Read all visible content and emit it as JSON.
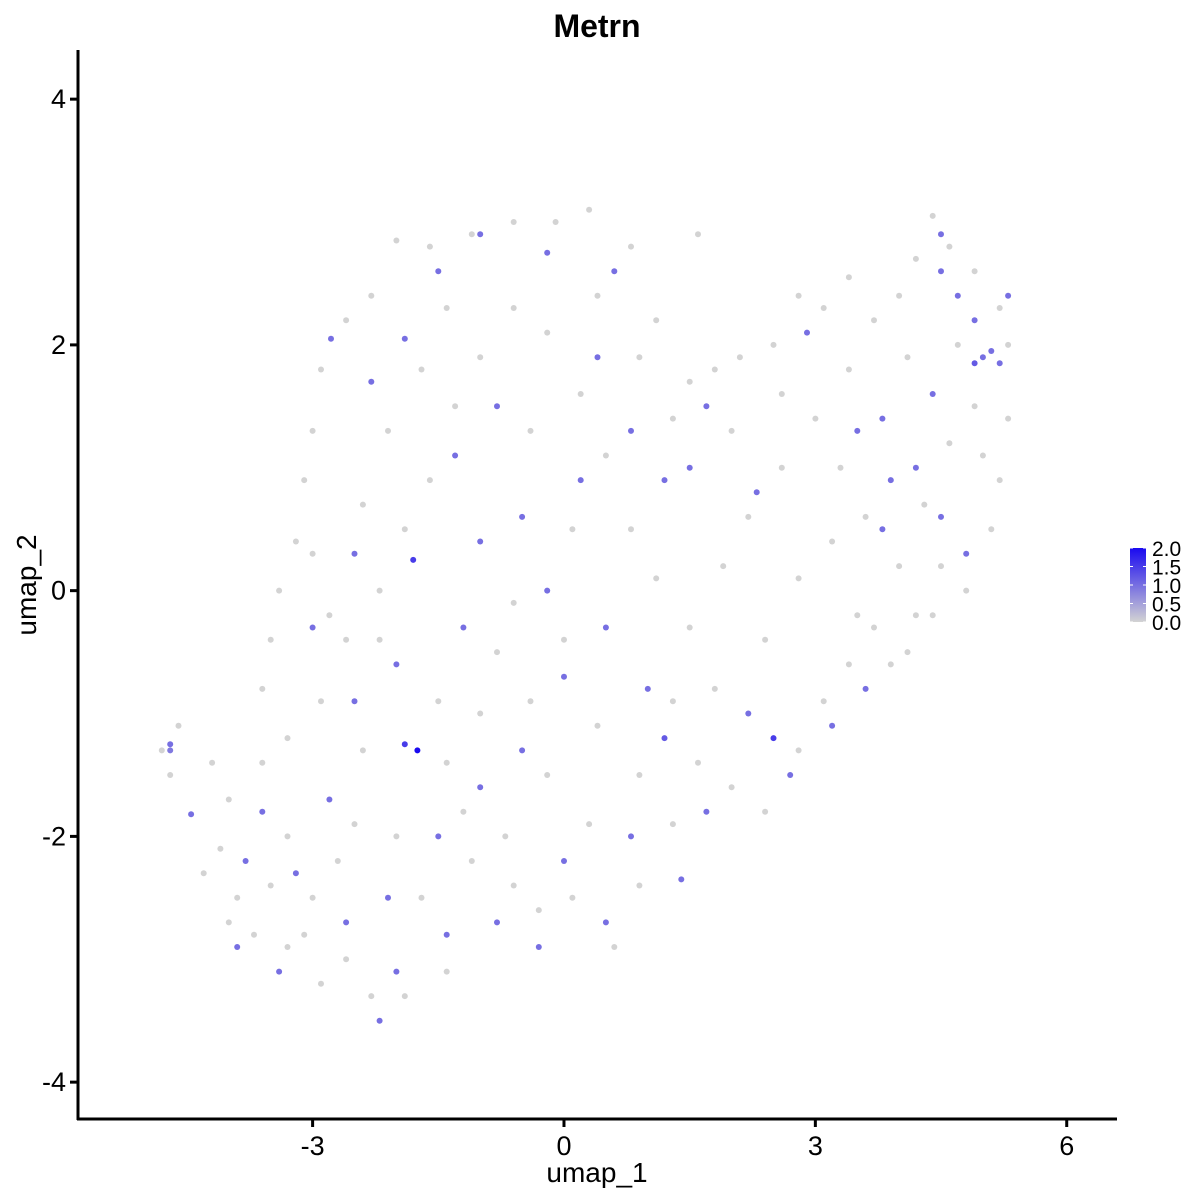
{
  "chart_data": {
    "type": "scatter",
    "title": "Metrn",
    "xlabel": "umap_1",
    "ylabel": "umap_2",
    "xlim": [
      -5.8,
      6.6
    ],
    "ylim": [
      -4.3,
      4.4
    ],
    "x_ticks": [
      -3,
      0,
      3,
      6
    ],
    "x_tick_labels": [
      "-3",
      "0",
      "3",
      "6"
    ],
    "y_ticks": [
      -4,
      -2,
      0,
      2,
      4
    ],
    "y_tick_labels": [
      "-4",
      "-2",
      "0",
      "2",
      "4"
    ],
    "grid": false,
    "legend_placement": "right",
    "color_scale": {
      "low": "#d3d3d3",
      "high": "#1a0af0",
      "range": [
        0,
        2.0
      ],
      "ticks": [
        0,
        0.5,
        1.0,
        1.5,
        2.0
      ],
      "tick_labels": [
        "0.0",
        "0.5",
        "1.0",
        "1.5",
        "2.0"
      ]
    },
    "points": [
      {
        "x": -4.7,
        "y": -1.25,
        "v": 1.0
      },
      {
        "x": -4.7,
        "y": -1.3,
        "v": 0.9
      },
      {
        "x": -4.45,
        "y": -1.82,
        "v": 1.0
      },
      {
        "x": -2.78,
        "y": 2.05,
        "v": 1.0
      },
      {
        "x": -2.3,
        "y": 1.7,
        "v": 1.0
      },
      {
        "x": -1.9,
        "y": 2.05,
        "v": 1.0
      },
      {
        "x": -1.5,
        "y": 2.6,
        "v": 1.0
      },
      {
        "x": -1.0,
        "y": 2.9,
        "v": 1.0
      },
      {
        "x": -0.2,
        "y": 2.75,
        "v": 1.0
      },
      {
        "x": 0.6,
        "y": 2.6,
        "v": 1.0
      },
      {
        "x": 0.4,
        "y": 1.9,
        "v": 1.0
      },
      {
        "x": -0.8,
        "y": 1.5,
        "v": 1.0
      },
      {
        "x": -1.3,
        "y": 1.1,
        "v": 1.0
      },
      {
        "x": -1.8,
        "y": 0.25,
        "v": 1.5
      },
      {
        "x": -2.5,
        "y": 0.3,
        "v": 1.0
      },
      {
        "x": -3.0,
        "y": -0.3,
        "v": 1.0
      },
      {
        "x": -2.5,
        "y": -0.9,
        "v": 1.0
      },
      {
        "x": -1.75,
        "y": -1.3,
        "v": 2.0
      },
      {
        "x": -1.9,
        "y": -1.25,
        "v": 1.5
      },
      {
        "x": -2.8,
        "y": -1.7,
        "v": 1.0
      },
      {
        "x": -3.2,
        "y": -2.3,
        "v": 1.0
      },
      {
        "x": -2.6,
        "y": -2.7,
        "v": 1.0
      },
      {
        "x": -2.1,
        "y": -2.5,
        "v": 1.0
      },
      {
        "x": -1.5,
        "y": -2.0,
        "v": 1.0
      },
      {
        "x": -1.0,
        "y": -1.6,
        "v": 1.0
      },
      {
        "x": -0.5,
        "y": -1.3,
        "v": 1.0
      },
      {
        "x": 0.0,
        "y": -0.7,
        "v": 1.0
      },
      {
        "x": 0.5,
        "y": -0.3,
        "v": 1.0
      },
      {
        "x": 1.0,
        "y": -0.8,
        "v": 1.0
      },
      {
        "x": 1.2,
        "y": -1.2,
        "v": 1.2
      },
      {
        "x": 1.4,
        "y": -2.35,
        "v": 1.0
      },
      {
        "x": 0.5,
        "y": -2.7,
        "v": 1.0
      },
      {
        "x": -0.3,
        "y": -2.9,
        "v": 1.0
      },
      {
        "x": 2.5,
        "y": -1.2,
        "v": 1.5
      },
      {
        "x": 2.7,
        "y": -1.5,
        "v": 1.0
      },
      {
        "x": 3.6,
        "y": -0.8,
        "v": 1.0
      },
      {
        "x": 3.2,
        "y": -1.1,
        "v": 1.0
      },
      {
        "x": 3.9,
        "y": 0.9,
        "v": 1.0
      },
      {
        "x": 4.4,
        "y": 1.6,
        "v": 1.0
      },
      {
        "x": 4.5,
        "y": 2.9,
        "v": 1.0
      },
      {
        "x": 4.5,
        "y": 2.6,
        "v": 1.0
      },
      {
        "x": 4.7,
        "y": 2.4,
        "v": 1.0
      },
      {
        "x": 4.9,
        "y": 2.2,
        "v": 1.0
      },
      {
        "x": 4.9,
        "y": 1.85,
        "v": 1.2
      },
      {
        "x": 5.0,
        "y": 1.9,
        "v": 1.0
      },
      {
        "x": 5.1,
        "y": 1.95,
        "v": 1.0
      },
      {
        "x": 5.2,
        "y": 1.85,
        "v": 1.0
      },
      {
        "x": 5.3,
        "y": 2.4,
        "v": 1.0
      },
      {
        "x": 2.9,
        "y": 2.1,
        "v": 1.0
      },
      {
        "x": 1.7,
        "y": 1.5,
        "v": 1.0
      },
      {
        "x": 1.2,
        "y": 0.9,
        "v": 1.0
      },
      {
        "x": 1.5,
        "y": 1.0,
        "v": 1.0
      },
      {
        "x": 2.3,
        "y": 0.8,
        "v": 1.0
      },
      {
        "x": 3.5,
        "y": 1.3,
        "v": 1.0
      },
      {
        "x": 3.8,
        "y": 1.4,
        "v": 1.0
      },
      {
        "x": 4.2,
        "y": 1.0,
        "v": 1.0
      },
      {
        "x": 4.5,
        "y": 0.6,
        "v": 1.0
      },
      {
        "x": 4.8,
        "y": 0.3,
        "v": 1.0
      },
      {
        "x": 3.8,
        "y": 0.5,
        "v": 1.0
      },
      {
        "x": 0.8,
        "y": 1.3,
        "v": 1.0
      },
      {
        "x": 0.2,
        "y": 0.9,
        "v": 1.0
      },
      {
        "x": -0.5,
        "y": 0.6,
        "v": 1.0
      },
      {
        "x": -1.0,
        "y": 0.4,
        "v": 1.0
      },
      {
        "x": -0.2,
        "y": 0.0,
        "v": 1.0
      },
      {
        "x": -1.2,
        "y": -0.3,
        "v": 1.0
      },
      {
        "x": -2.0,
        "y": -0.6,
        "v": 1.0
      },
      {
        "x": -3.6,
        "y": -1.8,
        "v": 1.0
      },
      {
        "x": -3.8,
        "y": -2.2,
        "v": 1.0
      },
      {
        "x": -3.9,
        "y": -2.9,
        "v": 1.0
      },
      {
        "x": -3.4,
        "y": -3.1,
        "v": 1.0
      },
      {
        "x": -2.2,
        "y": -3.5,
        "v": 1.0
      },
      {
        "x": -2.0,
        "y": -3.1,
        "v": 1.0
      },
      {
        "x": -1.4,
        "y": -2.8,
        "v": 1.0
      },
      {
        "x": -0.8,
        "y": -2.7,
        "v": 1.0
      },
      {
        "x": 0.0,
        "y": -2.2,
        "v": 1.0
      },
      {
        "x": 0.8,
        "y": -2.0,
        "v": 1.0
      },
      {
        "x": 1.7,
        "y": -1.8,
        "v": 1.0
      },
      {
        "x": 2.2,
        "y": -1.0,
        "v": 1.0
      },
      {
        "x": -4.8,
        "y": -1.3,
        "v": 0
      },
      {
        "x": -4.7,
        "y": -1.5,
        "v": 0
      },
      {
        "x": -4.6,
        "y": -1.1,
        "v": 0
      },
      {
        "x": -4.2,
        "y": -1.4,
        "v": 0
      },
      {
        "x": -4.0,
        "y": -1.7,
        "v": 0
      },
      {
        "x": -4.1,
        "y": -2.1,
        "v": 0
      },
      {
        "x": -3.9,
        "y": -2.5,
        "v": 0
      },
      {
        "x": -3.7,
        "y": -2.8,
        "v": 0
      },
      {
        "x": -3.5,
        "y": -2.4,
        "v": 0
      },
      {
        "x": -3.3,
        "y": -2.0,
        "v": 0
      },
      {
        "x": -3.1,
        "y": -2.8,
        "v": 0
      },
      {
        "x": -2.9,
        "y": -3.2,
        "v": 0
      },
      {
        "x": -2.7,
        "y": -2.2,
        "v": 0
      },
      {
        "x": -2.5,
        "y": -1.9,
        "v": 0
      },
      {
        "x": -2.3,
        "y": -3.3,
        "v": 0
      },
      {
        "x": -1.9,
        "y": -3.3,
        "v": 0
      },
      {
        "x": -1.4,
        "y": -3.1,
        "v": 0
      },
      {
        "x": -1.1,
        "y": -2.2,
        "v": 0
      },
      {
        "x": -0.7,
        "y": -2.0,
        "v": 0
      },
      {
        "x": -0.3,
        "y": -2.6,
        "v": 0
      },
      {
        "x": 0.1,
        "y": -2.5,
        "v": 0
      },
      {
        "x": 0.6,
        "y": -2.9,
        "v": 0
      },
      {
        "x": 0.9,
        "y": -2.4,
        "v": 0
      },
      {
        "x": 1.3,
        "y": -1.9,
        "v": 0
      },
      {
        "x": 1.6,
        "y": -1.4,
        "v": 0
      },
      {
        "x": 2.0,
        "y": -1.6,
        "v": 0
      },
      {
        "x": 2.4,
        "y": -1.8,
        "v": 0
      },
      {
        "x": 2.8,
        "y": -1.3,
        "v": 0
      },
      {
        "x": 3.1,
        "y": -0.9,
        "v": 0
      },
      {
        "x": 3.4,
        "y": -0.6,
        "v": 0
      },
      {
        "x": 3.7,
        "y": -0.3,
        "v": 0
      },
      {
        "x": 4.1,
        "y": -0.5,
        "v": 0
      },
      {
        "x": 4.4,
        "y": -0.2,
        "v": 0
      },
      {
        "x": 4.8,
        "y": 0.0,
        "v": 0
      },
      {
        "x": 5.1,
        "y": 0.5,
        "v": 0
      },
      {
        "x": 5.2,
        "y": 0.9,
        "v": 0
      },
      {
        "x": 5.3,
        "y": 1.4,
        "v": 0
      },
      {
        "x": 5.3,
        "y": 2.0,
        "v": 0
      },
      {
        "x": 5.2,
        "y": 2.3,
        "v": 0
      },
      {
        "x": 4.9,
        "y": 2.6,
        "v": 0
      },
      {
        "x": 4.6,
        "y": 2.8,
        "v": 0
      },
      {
        "x": 4.4,
        "y": 3.05,
        "v": 0
      },
      {
        "x": 4.2,
        "y": 2.7,
        "v": 0
      },
      {
        "x": 4.0,
        "y": 2.4,
        "v": 0
      },
      {
        "x": 3.7,
        "y": 2.2,
        "v": 0
      },
      {
        "x": 3.4,
        "y": 2.55,
        "v": 0
      },
      {
        "x": 3.1,
        "y": 2.3,
        "v": 0
      },
      {
        "x": 2.8,
        "y": 2.4,
        "v": 0
      },
      {
        "x": 2.5,
        "y": 2.0,
        "v": 0
      },
      {
        "x": 2.1,
        "y": 1.9,
        "v": 0
      },
      {
        "x": 1.8,
        "y": 1.8,
        "v": 0
      },
      {
        "x": 1.5,
        "y": 1.7,
        "v": 0
      },
      {
        "x": 1.6,
        "y": 2.9,
        "v": 0
      },
      {
        "x": 1.1,
        "y": 2.2,
        "v": 0
      },
      {
        "x": 0.8,
        "y": 2.8,
        "v": 0
      },
      {
        "x": 0.3,
        "y": 3.1,
        "v": 0
      },
      {
        "x": -0.1,
        "y": 3.0,
        "v": 0
      },
      {
        "x": -0.6,
        "y": 3.0,
        "v": 0
      },
      {
        "x": -1.1,
        "y": 2.9,
        "v": 0
      },
      {
        "x": -1.6,
        "y": 2.8,
        "v": 0
      },
      {
        "x": -2.0,
        "y": 2.85,
        "v": 0
      },
      {
        "x": -2.3,
        "y": 2.4,
        "v": 0
      },
      {
        "x": -2.6,
        "y": 2.2,
        "v": 0
      },
      {
        "x": -2.9,
        "y": 1.8,
        "v": 0
      },
      {
        "x": -3.0,
        "y": 1.3,
        "v": 0
      },
      {
        "x": -3.1,
        "y": 0.9,
        "v": 0
      },
      {
        "x": -3.2,
        "y": 0.4,
        "v": 0
      },
      {
        "x": -3.4,
        "y": 0.0,
        "v": 0
      },
      {
        "x": -3.5,
        "y": -0.4,
        "v": 0
      },
      {
        "x": -3.6,
        "y": -0.8,
        "v": 0
      },
      {
        "x": -3.3,
        "y": -1.2,
        "v": 0
      },
      {
        "x": -2.9,
        "y": -0.9,
        "v": 0
      },
      {
        "x": -2.6,
        "y": -0.4,
        "v": 0
      },
      {
        "x": -2.2,
        "y": 0.0,
        "v": 0
      },
      {
        "x": -1.9,
        "y": 0.5,
        "v": 0
      },
      {
        "x": -1.6,
        "y": 0.9,
        "v": 0
      },
      {
        "x": -1.3,
        "y": 1.5,
        "v": 0
      },
      {
        "x": -1.0,
        "y": 1.9,
        "v": 0
      },
      {
        "x": -0.6,
        "y": 2.3,
        "v": 0
      },
      {
        "x": -0.2,
        "y": 2.1,
        "v": 0
      },
      {
        "x": 0.2,
        "y": 1.6,
        "v": 0
      },
      {
        "x": 0.5,
        "y": 1.1,
        "v": 0
      },
      {
        "x": 0.8,
        "y": 0.5,
        "v": 0
      },
      {
        "x": 1.1,
        "y": 0.1,
        "v": 0
      },
      {
        "x": 1.5,
        "y": -0.3,
        "v": 0
      },
      {
        "x": 1.9,
        "y": 0.2,
        "v": 0
      },
      {
        "x": 2.2,
        "y": 0.6,
        "v": 0
      },
      {
        "x": 2.6,
        "y": 1.0,
        "v": 0
      },
      {
        "x": 3.0,
        "y": 1.4,
        "v": 0
      },
      {
        "x": 3.3,
        "y": 1.0,
        "v": 0
      },
      {
        "x": 3.6,
        "y": 0.6,
        "v": 0
      },
      {
        "x": 4.0,
        "y": 0.2,
        "v": 0
      },
      {
        "x": 4.3,
        "y": 0.7,
        "v": 0
      },
      {
        "x": 4.6,
        "y": 1.2,
        "v": 0
      },
      {
        "x": 4.9,
        "y": 1.5,
        "v": 0
      },
      {
        "x": 0.0,
        "y": -0.4,
        "v": 0
      },
      {
        "x": -0.4,
        "y": -0.9,
        "v": 0
      },
      {
        "x": -0.8,
        "y": -0.5,
        "v": 0
      },
      {
        "x": -1.5,
        "y": -0.9,
        "v": 0
      },
      {
        "x": -1.2,
        "y": -1.8,
        "v": 0
      },
      {
        "x": -0.2,
        "y": -1.5,
        "v": 0
      },
      {
        "x": 0.4,
        "y": -1.1,
        "v": 0
      },
      {
        "x": 0.9,
        "y": -1.5,
        "v": 0
      },
      {
        "x": 1.3,
        "y": -0.9,
        "v": 0
      },
      {
        "x": 1.8,
        "y": -0.8,
        "v": 0
      },
      {
        "x": 2.4,
        "y": -0.4,
        "v": 0
      },
      {
        "x": 2.8,
        "y": 0.1,
        "v": 0
      },
      {
        "x": 3.2,
        "y": 0.4,
        "v": 0
      },
      {
        "x": -2.4,
        "y": -1.3,
        "v": 0
      },
      {
        "x": -2.0,
        "y": -2.0,
        "v": 0
      },
      {
        "x": -1.7,
        "y": -2.5,
        "v": 0
      },
      {
        "x": -2.6,
        "y": -3.0,
        "v": 0
      },
      {
        "x": -3.0,
        "y": -2.5,
        "v": 0
      },
      {
        "x": -3.6,
        "y": -1.4,
        "v": 0
      },
      {
        "x": -4.3,
        "y": -2.3,
        "v": 0
      },
      {
        "x": -4.0,
        "y": -2.7,
        "v": 0
      },
      {
        "x": -3.3,
        "y": -2.9,
        "v": 0
      },
      {
        "x": -2.8,
        "y": -0.2,
        "v": 0
      },
      {
        "x": -2.4,
        "y": 0.7,
        "v": 0
      },
      {
        "x": -2.1,
        "y": 1.3,
        "v": 0
      },
      {
        "x": -1.7,
        "y": 1.8,
        "v": 0
      },
      {
        "x": -1.4,
        "y": 2.3,
        "v": 0
      },
      {
        "x": 0.4,
        "y": 2.4,
        "v": 0
      },
      {
        "x": 0.9,
        "y": 1.9,
        "v": 0
      },
      {
        "x": 1.3,
        "y": 1.4,
        "v": 0
      },
      {
        "x": 2.0,
        "y": 1.3,
        "v": 0
      },
      {
        "x": 2.6,
        "y": 1.6,
        "v": 0
      },
      {
        "x": 3.4,
        "y": 1.8,
        "v": 0
      },
      {
        "x": 4.1,
        "y": 1.9,
        "v": 0
      },
      {
        "x": 4.7,
        "y": 2.0,
        "v": 0
      },
      {
        "x": 5.0,
        "y": 1.1,
        "v": 0
      },
      {
        "x": 4.5,
        "y": 0.2,
        "v": 0
      },
      {
        "x": 4.2,
        "y": -0.2,
        "v": 0
      },
      {
        "x": 3.9,
        "y": -0.6,
        "v": 0
      },
      {
        "x": 3.5,
        "y": -0.2,
        "v": 0
      },
      {
        "x": -0.4,
        "y": 1.3,
        "v": 0
      },
      {
        "x": 0.1,
        "y": 0.5,
        "v": 0
      },
      {
        "x": -0.6,
        "y": -0.1,
        "v": 0
      },
      {
        "x": -1.0,
        "y": -1.0,
        "v": 0
      },
      {
        "x": 0.3,
        "y": -1.9,
        "v": 0
      },
      {
        "x": -0.6,
        "y": -2.4,
        "v": 0
      },
      {
        "x": -1.4,
        "y": -1.4,
        "v": 0
      },
      {
        "x": -2.2,
        "y": -0.4,
        "v": 0
      },
      {
        "x": -3.0,
        "y": 0.3,
        "v": 0
      }
    ]
  }
}
